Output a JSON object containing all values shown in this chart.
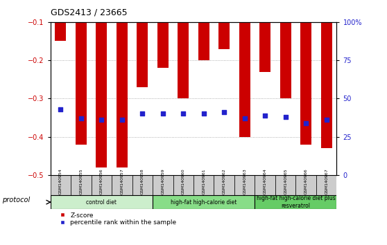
{
  "title": "GDS2413 / 23665",
  "categories": [
    "GSM140954",
    "GSM140955",
    "GSM140956",
    "GSM140957",
    "GSM140958",
    "GSM140959",
    "GSM140960",
    "GSM140961",
    "GSM140962",
    "GSM140963",
    "GSM140964",
    "GSM140965",
    "GSM140966",
    "GSM140967"
  ],
  "zscore": [
    -0.15,
    -0.42,
    -0.48,
    -0.48,
    -0.27,
    -0.22,
    -0.3,
    -0.2,
    -0.17,
    -0.4,
    -0.23,
    -0.3,
    -0.42,
    -0.43
  ],
  "percentile_right": [
    43,
    37,
    36,
    36,
    40,
    40,
    40,
    40,
    41,
    37,
    39,
    38,
    34,
    36
  ],
  "bar_color": "#cc0000",
  "dot_color": "#2222cc",
  "ylim_left": [
    -0.5,
    -0.1
  ],
  "ylim_right": [
    0,
    100
  ],
  "yticks_left": [
    -0.5,
    -0.4,
    -0.3,
    -0.2,
    -0.1
  ],
  "yticks_right": [
    0,
    25,
    50,
    75,
    100
  ],
  "ytick_labels_right": [
    "0",
    "25",
    "50",
    "75",
    "100%"
  ],
  "groups": [
    {
      "label": "control diet",
      "start": 0,
      "end": 4,
      "color": "#cceecc"
    },
    {
      "label": "high-fat high-calorie diet",
      "start": 5,
      "end": 9,
      "color": "#88dd88"
    },
    {
      "label": "high-fat high-calorie diet plus\nresveratrol",
      "start": 10,
      "end": 13,
      "color": "#66cc66"
    }
  ],
  "protocol_label": "protocol",
  "legend_zscore": "Z-score",
  "legend_percentile": "percentile rank within the sample",
  "background_color": "#ffffff",
  "xticklabel_bg": "#dddddd"
}
